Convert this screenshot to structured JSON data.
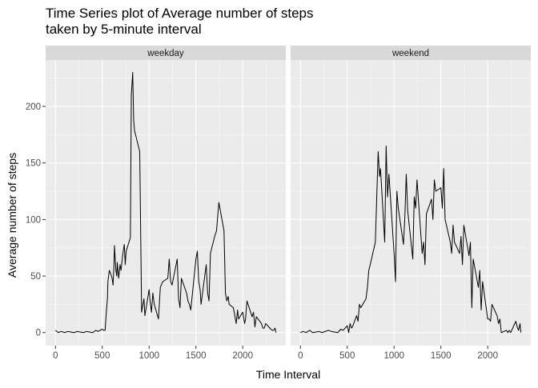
{
  "chart_data": {
    "type": "line",
    "title_lines": [
      "Time Series plot of Average number of steps",
      "taken by 5-minute interval"
    ],
    "xlabel": "Time Interval",
    "ylabel": "Average number of steps",
    "xlim": [
      -105,
      2460
    ],
    "ylim": [
      -11.5,
      241
    ],
    "x_ticks": [
      0,
      500,
      1000,
      1500,
      2000
    ],
    "y_ticks": [
      0,
      50,
      100,
      150,
      200
    ],
    "grid": true,
    "colors": {
      "panel_bg": "#ebebeb",
      "grid_major": "#ffffff",
      "strip_bg": "#d9d9d9",
      "line": "#000000"
    },
    "panels": [
      {
        "name": "weekday",
        "x": [
          0,
          30,
          60,
          100,
          130,
          200,
          230,
          300,
          330,
          400,
          430,
          455,
          500,
          515,
          530,
          545,
          555,
          560,
          575,
          590,
          605,
          615,
          625,
          630,
          645,
          655,
          660,
          675,
          690,
          700,
          720,
          735,
          745,
          755,
          800,
          810,
          825,
          835,
          845,
          855,
          900,
          920,
          945,
          955,
          1000,
          1010,
          1025,
          1040,
          1055,
          1100,
          1120,
          1145,
          1200,
          1215,
          1230,
          1245,
          1300,
          1315,
          1330,
          1345,
          1400,
          1415,
          1430,
          1445,
          1500,
          1515,
          1530,
          1545,
          1555,
          1610,
          1625,
          1640,
          1655,
          1700,
          1720,
          1745,
          1800,
          1815,
          1830,
          1845,
          1855,
          1900,
          1915,
          1930,
          1945,
          1955,
          2000,
          2020,
          2030,
          2045,
          2100,
          2115,
          2130,
          2145,
          2200,
          2215,
          2230,
          2245,
          2300,
          2315,
          2330,
          2345,
          2355
        ],
        "y": [
          2,
          0,
          1,
          0,
          1,
          0,
          1,
          0,
          1,
          0,
          2,
          1,
          3,
          2,
          2,
          20,
          30,
          45,
          55,
          52,
          48,
          42,
          60,
          77,
          55,
          50,
          62,
          48,
          60,
          55,
          70,
          78,
          60,
          72,
          84,
          210,
          230,
          188,
          178,
          175,
          160,
          18,
          30,
          15,
          38,
          28,
          18,
          35,
          25,
          12,
          40,
          45,
          48,
          65,
          45,
          42,
          65,
          30,
          22,
          48,
          35,
          28,
          25,
          20,
          65,
          72,
          45,
          38,
          25,
          60,
          35,
          28,
          70,
          85,
          90,
          115,
          90,
          35,
          28,
          32,
          25,
          22,
          15,
          8,
          20,
          12,
          18,
          8,
          12,
          28,
          14,
          18,
          5,
          14,
          8,
          4,
          4,
          8,
          3,
          2,
          2,
          4,
          0
        ]
      },
      {
        "name": "weekend",
        "x": [
          0,
          30,
          60,
          100,
          130,
          200,
          230,
          300,
          330,
          400,
          430,
          455,
          500,
          515,
          530,
          545,
          555,
          600,
          615,
          630,
          645,
          700,
          715,
          730,
          745,
          800,
          815,
          830,
          845,
          855,
          900,
          915,
          930,
          945,
          1000,
          1015,
          1030,
          1045,
          1100,
          1115,
          1130,
          1145,
          1200,
          1215,
          1230,
          1245,
          1300,
          1315,
          1330,
          1345,
          1400,
          1415,
          1430,
          1445,
          1500,
          1515,
          1530,
          1545,
          1600,
          1615,
          1630,
          1645,
          1700,
          1715,
          1730,
          1745,
          1800,
          1815,
          1830,
          1845,
          1900,
          1915,
          1930,
          1945,
          2000,
          2015,
          2030,
          2045,
          2100,
          2115,
          2130,
          2145,
          2200,
          2215,
          2230,
          2245,
          2300,
          2315,
          2330,
          2345,
          2355
        ],
        "y": [
          0,
          1,
          0,
          2,
          0,
          1,
          0,
          2,
          1,
          0,
          3,
          2,
          6,
          0,
          8,
          4,
          5,
          15,
          10,
          25,
          22,
          30,
          40,
          55,
          60,
          80,
          120,
          160,
          138,
          145,
          80,
          165,
          120,
          140,
          70,
          45,
          125,
          110,
          78,
          102,
          140,
          108,
          65,
          120,
          110,
          135,
          70,
          80,
          60,
          105,
          118,
          100,
          135,
          125,
          128,
          110,
          145,
          100,
          80,
          70,
          95,
          80,
          70,
          85,
          60,
          95,
          68,
          80,
          22,
          65,
          40,
          55,
          20,
          45,
          12,
          12,
          10,
          25,
          15,
          8,
          12,
          0,
          2,
          0,
          2,
          0,
          10,
          5,
          2,
          8,
          0
        ]
      }
    ]
  }
}
